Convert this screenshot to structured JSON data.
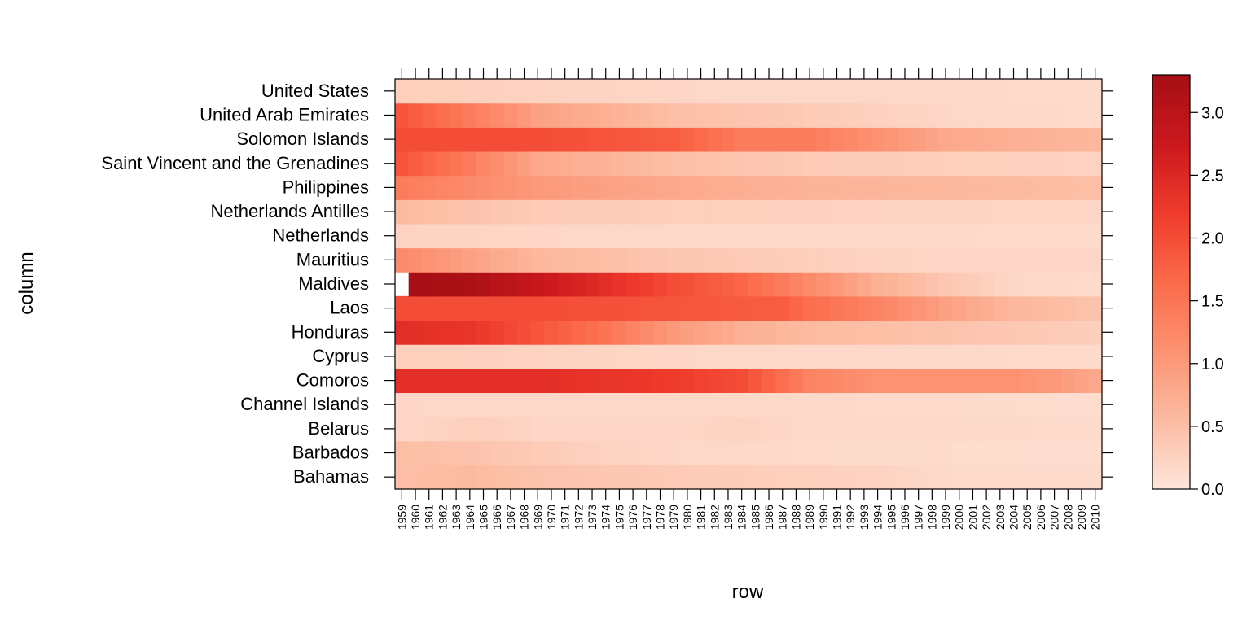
{
  "chart_data": {
    "type": "heatmap",
    "xlabel": "row",
    "ylabel": "column",
    "x": [
      "1959",
      "1960",
      "1961",
      "1962",
      "1963",
      "1964",
      "1965",
      "1966",
      "1967",
      "1968",
      "1969",
      "1970",
      "1971",
      "1972",
      "1973",
      "1974",
      "1975",
      "1976",
      "1977",
      "1978",
      "1979",
      "1980",
      "1981",
      "1982",
      "1983",
      "1984",
      "1985",
      "1986",
      "1987",
      "1988",
      "1989",
      "1990",
      "1991",
      "1992",
      "1993",
      "1994",
      "1995",
      "1996",
      "1997",
      "1998",
      "1999",
      "2000",
      "2001",
      "2002",
      "2003",
      "2004",
      "2005",
      "2006",
      "2007",
      "2008",
      "2009",
      "2010"
    ],
    "y": [
      "Bahamas",
      "Barbados",
      "Belarus",
      "Channel Islands",
      "Comoros",
      "Cyprus",
      "Honduras",
      "Laos",
      "Maldives",
      "Mauritius",
      "Netherlands",
      "Netherlands Antilles",
      "Philippines",
      "Saint Vincent and the Grenadines",
      "Solomon Islands",
      "United Arab Emirates",
      "United States"
    ],
    "colorbar": {
      "range": [
        0,
        3.3
      ],
      "ticks": [
        "0.0",
        "0.5",
        "1.0",
        "1.5",
        "2.0",
        "2.5",
        "3.0"
      ],
      "colors": [
        "#FEE6DC",
        "#FCBBA1",
        "#FC9272",
        "#FB6A4A",
        "#EF3B2C",
        "#CB181D",
        "#A50F15"
      ]
    },
    "rows": {
      "Bahamas": [
        [
          0,
          0.5
        ],
        [
          5,
          0.55
        ],
        [
          10,
          0.45
        ],
        [
          15,
          0.4
        ],
        [
          20,
          0.35
        ],
        [
          28,
          0.3
        ],
        [
          35,
          0.25
        ],
        [
          41,
          0.15
        ],
        [
          51,
          0.15
        ]
      ],
      "Barbados": [
        [
          0,
          0.5
        ],
        [
          5,
          0.45
        ],
        [
          10,
          0.35
        ],
        [
          15,
          0.25
        ],
        [
          20,
          0.2
        ],
        [
          30,
          0.15
        ],
        [
          51,
          0.12
        ]
      ],
      "Belarus": [
        [
          0,
          0.2
        ],
        [
          6,
          0.3
        ],
        [
          10,
          0.2
        ],
        [
          20,
          0.2
        ],
        [
          25,
          0.25
        ],
        [
          28,
          0.2
        ],
        [
          51,
          0.15
        ]
      ],
      "Channel Islands": [
        [
          0,
          0.2
        ],
        [
          20,
          0.18
        ],
        [
          40,
          0.15
        ],
        [
          51,
          0.12
        ]
      ],
      "Comoros": [
        [
          0,
          2.4
        ],
        [
          10,
          2.4
        ],
        [
          20,
          2.2
        ],
        [
          25,
          2.0
        ],
        [
          30,
          1.3
        ],
        [
          35,
          1.1
        ],
        [
          45,
          1.1
        ],
        [
          48,
          1.0
        ],
        [
          51,
          0.8
        ]
      ],
      "Cyprus": [
        [
          0,
          0.3
        ],
        [
          10,
          0.25
        ],
        [
          20,
          0.2
        ],
        [
          51,
          0.15
        ]
      ],
      "Honduras": [
        [
          0,
          2.4
        ],
        [
          5,
          2.3
        ],
        [
          10,
          1.9
        ],
        [
          15,
          1.5
        ],
        [
          20,
          1.0
        ],
        [
          25,
          0.7
        ],
        [
          30,
          0.55
        ],
        [
          40,
          0.45
        ],
        [
          51,
          0.3
        ]
      ],
      "Laos": [
        [
          0,
          2.0
        ],
        [
          10,
          2.0
        ],
        [
          20,
          1.9
        ],
        [
          28,
          1.8
        ],
        [
          30,
          1.6
        ],
        [
          35,
          1.3
        ],
        [
          40,
          0.9
        ],
        [
          45,
          0.6
        ],
        [
          51,
          0.45
        ]
      ],
      "Maldives": [
        [
          0,
          null
        ],
        [
          1,
          3.3
        ],
        [
          5,
          3.2
        ],
        [
          10,
          2.8
        ],
        [
          15,
          2.4
        ],
        [
          20,
          2.0
        ],
        [
          25,
          1.7
        ],
        [
          30,
          1.2
        ],
        [
          35,
          0.7
        ],
        [
          40,
          0.4
        ],
        [
          45,
          0.2
        ],
        [
          51,
          0.15
        ]
      ],
      "Mauritius": [
        [
          0,
          1.2
        ],
        [
          5,
          0.9
        ],
        [
          10,
          0.6
        ],
        [
          20,
          0.4
        ],
        [
          30,
          0.3
        ],
        [
          40,
          0.2
        ],
        [
          51,
          0.2
        ]
      ],
      "Netherlands": [
        [
          0,
          0.25
        ],
        [
          10,
          0.2
        ],
        [
          51,
          0.15
        ]
      ],
      "Netherlands Antilles": [
        [
          0,
          0.55
        ],
        [
          10,
          0.35
        ],
        [
          20,
          0.3
        ],
        [
          51,
          0.2
        ]
      ],
      "Philippines": [
        [
          0,
          1.4
        ],
        [
          5,
          1.2
        ],
        [
          10,
          1.0
        ],
        [
          20,
          0.8
        ],
        [
          30,
          0.65
        ],
        [
          40,
          0.6
        ],
        [
          51,
          0.5
        ]
      ],
      "Saint Vincent and the Grenadines": [
        [
          0,
          1.9
        ],
        [
          5,
          1.4
        ],
        [
          10,
          0.8
        ],
        [
          20,
          0.5
        ],
        [
          30,
          0.35
        ],
        [
          40,
          0.3
        ],
        [
          51,
          0.25
        ]
      ],
      "Solomon Islands": [
        [
          0,
          2.0
        ],
        [
          10,
          2.0
        ],
        [
          20,
          1.8
        ],
        [
          25,
          1.4
        ],
        [
          30,
          1.4
        ],
        [
          35,
          1.1
        ],
        [
          40,
          0.8
        ],
        [
          45,
          0.7
        ],
        [
          51,
          0.6
        ]
      ],
      "United Arab Emirates": [
        [
          0,
          1.9
        ],
        [
          5,
          1.4
        ],
        [
          10,
          0.9
        ],
        [
          20,
          0.5
        ],
        [
          30,
          0.35
        ],
        [
          40,
          0.2
        ],
        [
          51,
          0.15
        ]
      ],
      "United States": [
        [
          0,
          0.3
        ],
        [
          10,
          0.25
        ],
        [
          20,
          0.2
        ],
        [
          51,
          0.15
        ]
      ]
    }
  }
}
